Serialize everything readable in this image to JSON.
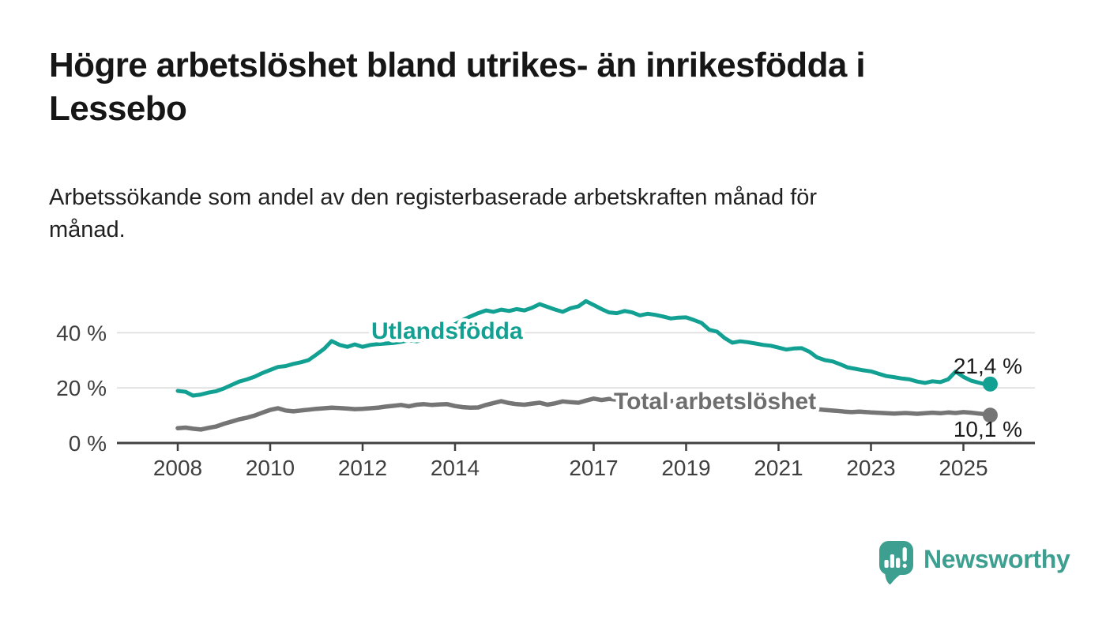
{
  "header": {
    "title": "Högre arbetslöshet bland utrikes- än inrikesfödda i Lessebo",
    "title_lines": [
      "Högre arbetslöshet bland utrikes- än inrikesfödda i",
      "Lessebo"
    ],
    "subtitle": "Arbetssökande som andel av den registerbaserade arbetskraften månad för månad.",
    "subtitle_lines": [
      "Arbetssökande som andel av den registerbaserade arbetskraften månad för",
      "månad."
    ]
  },
  "footer": {
    "brand": "Newsworthy",
    "logo_icon": "speech-bubble-with-bar-chart-and-exclamation",
    "logo_color": "#3d9f90"
  },
  "colors": {
    "background": "#ffffff",
    "accent_teal": "#12a092",
    "line_gray": "#757575",
    "axis": "#404040",
    "grid": "#dcdcdc",
    "tick_text": "#3f3f3f",
    "value_text": "#1b1b1b",
    "title_text": "#161616"
  },
  "chart_data": {
    "type": "line",
    "title": "Högre arbetslöshet bland utrikes- än inrikesfödda i Lessebo",
    "subtitle": "Arbetssökande som andel av den registerbaserade arbetskraften månad för månad.",
    "x_unit": "time (decimal years, monthly observations)",
    "y_unit": "percent",
    "xlim": [
      2007.7,
      2026.0
    ],
    "ylim": [
      0,
      53
    ],
    "grid": "horizontal gridlines at 20 % and 40 %",
    "legend_position": "inline series labels on chart",
    "yticks": [
      {
        "value": 0,
        "label": "0 %"
      },
      {
        "value": 20,
        "label": "20 %"
      },
      {
        "value": 40,
        "label": "40 %"
      }
    ],
    "xticks": [
      {
        "value": 2008,
        "label": "2008"
      },
      {
        "value": 2010,
        "label": "2010"
      },
      {
        "value": 2012,
        "label": "2012"
      },
      {
        "value": 2014,
        "label": "2014"
      },
      {
        "value": 2017,
        "label": "2017"
      },
      {
        "value": 2019,
        "label": "2019"
      },
      {
        "value": 2021,
        "label": "2021"
      },
      {
        "value": 2023,
        "label": "2023"
      },
      {
        "value": 2025,
        "label": "2025"
      }
    ],
    "series": [
      {
        "name": "Utlandsfödda",
        "color": "#12a092",
        "label_color": "#12a092",
        "end_value_label": "21,4 %",
        "end_value": 21.4,
        "points": [
          [
            2008.0,
            18.9
          ],
          [
            2008.17,
            18.6
          ],
          [
            2008.33,
            17.2
          ],
          [
            2008.5,
            17.6
          ],
          [
            2008.67,
            18.3
          ],
          [
            2008.83,
            18.8
          ],
          [
            2009.0,
            19.8
          ],
          [
            2009.17,
            21.1
          ],
          [
            2009.33,
            22.3
          ],
          [
            2009.5,
            23.1
          ],
          [
            2009.67,
            24.1
          ],
          [
            2009.83,
            25.4
          ],
          [
            2010.0,
            26.5
          ],
          [
            2010.17,
            27.6
          ],
          [
            2010.33,
            27.9
          ],
          [
            2010.5,
            28.7
          ],
          [
            2010.67,
            29.3
          ],
          [
            2010.83,
            30.1
          ],
          [
            2011.0,
            32.1
          ],
          [
            2011.17,
            34.2
          ],
          [
            2011.33,
            37.0
          ],
          [
            2011.5,
            35.6
          ],
          [
            2011.67,
            34.9
          ],
          [
            2011.83,
            35.8
          ],
          [
            2012.0,
            34.9
          ],
          [
            2012.17,
            35.6
          ],
          [
            2012.33,
            35.9
          ],
          [
            2012.5,
            36.1
          ],
          [
            2012.67,
            36.3
          ],
          [
            2012.83,
            36.7
          ],
          [
            2013.0,
            37.3
          ],
          [
            2013.17,
            36.9
          ],
          [
            2013.33,
            37.6
          ],
          [
            2013.5,
            38.6
          ],
          [
            2013.67,
            40.1
          ],
          [
            2013.83,
            41.6
          ],
          [
            2014.0,
            43.1
          ],
          [
            2014.17,
            44.6
          ],
          [
            2014.33,
            45.9
          ],
          [
            2014.5,
            47.1
          ],
          [
            2014.67,
            48.1
          ],
          [
            2014.83,
            47.6
          ],
          [
            2015.0,
            48.4
          ],
          [
            2015.17,
            47.9
          ],
          [
            2015.33,
            48.6
          ],
          [
            2015.5,
            48.1
          ],
          [
            2015.67,
            49.1
          ],
          [
            2015.83,
            50.4
          ],
          [
            2016.0,
            49.4
          ],
          [
            2016.17,
            48.4
          ],
          [
            2016.33,
            47.6
          ],
          [
            2016.5,
            48.9
          ],
          [
            2016.67,
            49.6
          ],
          [
            2016.83,
            51.5
          ],
          [
            2017.0,
            50.1
          ],
          [
            2017.17,
            48.6
          ],
          [
            2017.33,
            47.4
          ],
          [
            2017.5,
            47.1
          ],
          [
            2017.67,
            47.9
          ],
          [
            2017.83,
            47.4
          ],
          [
            2018.0,
            46.3
          ],
          [
            2018.17,
            46.9
          ],
          [
            2018.33,
            46.5
          ],
          [
            2018.5,
            45.9
          ],
          [
            2018.67,
            45.2
          ],
          [
            2018.83,
            45.5
          ],
          [
            2019.0,
            45.6
          ],
          [
            2019.17,
            44.6
          ],
          [
            2019.33,
            43.6
          ],
          [
            2019.5,
            41.1
          ],
          [
            2019.67,
            40.4
          ],
          [
            2019.83,
            38.1
          ],
          [
            2020.0,
            36.4
          ],
          [
            2020.17,
            36.9
          ],
          [
            2020.33,
            36.6
          ],
          [
            2020.5,
            36.1
          ],
          [
            2020.67,
            35.6
          ],
          [
            2020.83,
            35.3
          ],
          [
            2021.0,
            34.6
          ],
          [
            2021.17,
            33.9
          ],
          [
            2021.33,
            34.3
          ],
          [
            2021.5,
            34.4
          ],
          [
            2021.67,
            33.1
          ],
          [
            2021.83,
            31.1
          ],
          [
            2022.0,
            30.1
          ],
          [
            2022.17,
            29.6
          ],
          [
            2022.33,
            28.6
          ],
          [
            2022.5,
            27.4
          ],
          [
            2022.67,
            26.9
          ],
          [
            2022.83,
            26.4
          ],
          [
            2023.0,
            26.0
          ],
          [
            2023.17,
            25.1
          ],
          [
            2023.33,
            24.3
          ],
          [
            2023.5,
            23.9
          ],
          [
            2023.67,
            23.4
          ],
          [
            2023.83,
            23.1
          ],
          [
            2024.0,
            22.3
          ],
          [
            2024.17,
            21.8
          ],
          [
            2024.33,
            22.4
          ],
          [
            2024.5,
            22.1
          ],
          [
            2024.67,
            23.1
          ],
          [
            2024.83,
            25.9
          ],
          [
            2025.0,
            24.0
          ],
          [
            2025.17,
            22.6
          ],
          [
            2025.33,
            21.9
          ],
          [
            2025.5,
            21.2
          ],
          [
            2025.58,
            21.4
          ]
        ]
      },
      {
        "name": "Total arbetslöshet",
        "color": "#757575",
        "label_color": "#6e6e6e",
        "end_value_label": "10,1 %",
        "end_value": 10.1,
        "points": [
          [
            2008.0,
            5.4
          ],
          [
            2008.17,
            5.6
          ],
          [
            2008.33,
            5.2
          ],
          [
            2008.5,
            4.9
          ],
          [
            2008.67,
            5.5
          ],
          [
            2008.83,
            6.0
          ],
          [
            2009.0,
            7.0
          ],
          [
            2009.17,
            7.8
          ],
          [
            2009.33,
            8.6
          ],
          [
            2009.5,
            9.2
          ],
          [
            2009.67,
            10.0
          ],
          [
            2009.83,
            11.0
          ],
          [
            2010.0,
            12.0
          ],
          [
            2010.17,
            12.6
          ],
          [
            2010.33,
            11.8
          ],
          [
            2010.5,
            11.5
          ],
          [
            2010.67,
            11.8
          ],
          [
            2010.83,
            12.1
          ],
          [
            2011.0,
            12.4
          ],
          [
            2011.17,
            12.6
          ],
          [
            2011.33,
            12.8
          ],
          [
            2011.5,
            12.7
          ],
          [
            2011.67,
            12.5
          ],
          [
            2011.83,
            12.3
          ],
          [
            2012.0,
            12.4
          ],
          [
            2012.17,
            12.6
          ],
          [
            2012.33,
            12.8
          ],
          [
            2012.5,
            13.2
          ],
          [
            2012.67,
            13.5
          ],
          [
            2012.83,
            13.8
          ],
          [
            2013.0,
            13.3
          ],
          [
            2013.17,
            13.9
          ],
          [
            2013.33,
            14.1
          ],
          [
            2013.5,
            13.8
          ],
          [
            2013.67,
            14.0
          ],
          [
            2013.83,
            14.1
          ],
          [
            2014.0,
            13.4
          ],
          [
            2014.17,
            13.0
          ],
          [
            2014.33,
            12.8
          ],
          [
            2014.5,
            12.9
          ],
          [
            2014.67,
            13.8
          ],
          [
            2014.83,
            14.5
          ],
          [
            2015.0,
            15.2
          ],
          [
            2015.17,
            14.5
          ],
          [
            2015.33,
            14.1
          ],
          [
            2015.5,
            13.9
          ],
          [
            2015.67,
            14.3
          ],
          [
            2015.83,
            14.6
          ],
          [
            2016.0,
            13.9
          ],
          [
            2016.17,
            14.4
          ],
          [
            2016.33,
            15.1
          ],
          [
            2016.5,
            14.8
          ],
          [
            2016.67,
            14.6
          ],
          [
            2016.83,
            15.4
          ],
          [
            2017.0,
            16.1
          ],
          [
            2017.17,
            15.6
          ],
          [
            2017.33,
            16.0
          ],
          [
            2017.5,
            15.7
          ],
          [
            2017.67,
            15.9
          ],
          [
            2017.83,
            15.5
          ],
          [
            2018.0,
            15.2
          ],
          [
            2018.25,
            15.5
          ],
          [
            2018.5,
            15.0
          ],
          [
            2018.75,
            15.3
          ],
          [
            2019.0,
            15.5
          ],
          [
            2019.25,
            15.1
          ],
          [
            2019.5,
            14.8
          ],
          [
            2019.75,
            14.9
          ],
          [
            2020.0,
            15.0
          ],
          [
            2020.25,
            14.6
          ],
          [
            2020.5,
            14.4
          ],
          [
            2020.75,
            14.0
          ],
          [
            2021.0,
            13.6
          ],
          [
            2021.25,
            13.2
          ],
          [
            2021.5,
            12.9
          ],
          [
            2021.75,
            12.4
          ],
          [
            2022.0,
            12.0
          ],
          [
            2022.25,
            11.7
          ],
          [
            2022.42,
            11.4
          ],
          [
            2022.58,
            11.2
          ],
          [
            2022.75,
            11.4
          ],
          [
            2023.0,
            11.1
          ],
          [
            2023.25,
            10.9
          ],
          [
            2023.5,
            10.7
          ],
          [
            2023.75,
            10.9
          ],
          [
            2024.0,
            10.6
          ],
          [
            2024.17,
            10.8
          ],
          [
            2024.33,
            11.0
          ],
          [
            2024.5,
            10.8
          ],
          [
            2024.67,
            11.1
          ],
          [
            2024.83,
            10.9
          ],
          [
            2025.0,
            11.2
          ],
          [
            2025.17,
            11.0
          ],
          [
            2025.33,
            10.7
          ],
          [
            2025.5,
            10.4
          ],
          [
            2025.58,
            10.1
          ]
        ]
      }
    ]
  }
}
